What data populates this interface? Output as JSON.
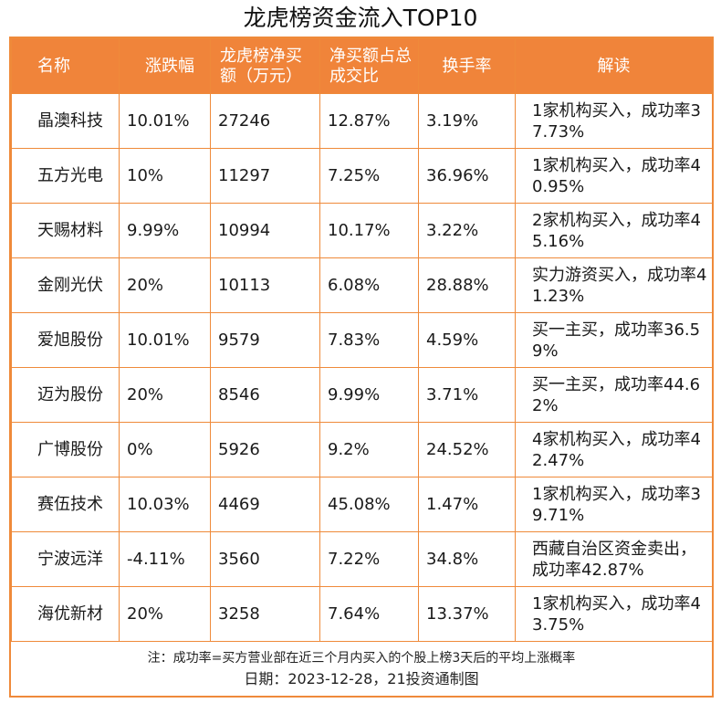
{
  "title": "龙虎榜资金流入TOP10",
  "headers": {
    "name": "名称",
    "change": "涨跌幅",
    "net_buy": "龙虎榜净买额（万元）",
    "net_ratio": "净买额占总成交比",
    "turnover": "换手率",
    "reading": "解读"
  },
  "rows": [
    {
      "name": "晶澳科技",
      "change": "10.01%",
      "net_buy": "27246",
      "net_ratio": "12.87%",
      "turnover": "3.19%",
      "reading": "1家机构买入，成功率37.73%"
    },
    {
      "name": "五方光电",
      "change": "10%",
      "net_buy": "11297",
      "net_ratio": "7.25%",
      "turnover": "36.96%",
      "reading": "1家机构买入，成功率40.95%"
    },
    {
      "name": "天赐材料",
      "change": "9.99%",
      "net_buy": "10994",
      "net_ratio": "10.17%",
      "turnover": "3.22%",
      "reading": "2家机构买入，成功率45.16%"
    },
    {
      "name": "金刚光伏",
      "change": "20%",
      "net_buy": "10113",
      "net_ratio": "6.08%",
      "turnover": "28.88%",
      "reading": "实力游资买入，成功率41.23%"
    },
    {
      "name": "爱旭股份",
      "change": "10.01%",
      "net_buy": "9579",
      "net_ratio": "7.83%",
      "turnover": "4.59%",
      "reading": "买一主买，成功率36.59%"
    },
    {
      "name": "迈为股份",
      "change": "20%",
      "net_buy": "8546",
      "net_ratio": "9.99%",
      "turnover": "3.71%",
      "reading": "买一主买，成功率44.62%"
    },
    {
      "name": "广博股份",
      "change": "0%",
      "net_buy": "5926",
      "net_ratio": "9.2%",
      "turnover": "24.52%",
      "reading": "4家机构买入，成功率42.47%"
    },
    {
      "name": "赛伍技术",
      "change": "10.03%",
      "net_buy": "4469",
      "net_ratio": "45.08%",
      "turnover": "1.47%",
      "reading": "1家机构买入，成功率39.71%"
    },
    {
      "name": "宁波远洋",
      "change": "-4.11%",
      "net_buy": "3560",
      "net_ratio": "7.22%",
      "turnover": "34.8%",
      "reading": "西藏自治区资金卖出，成功率42.87%"
    },
    {
      "name": "海优新材",
      "change": "20%",
      "net_buy": "3258",
      "net_ratio": "7.64%",
      "turnover": "13.37%",
      "reading": "1家机构买入，成功率43.75%"
    }
  ],
  "footer": {
    "note": "注：成功率=买方营业部在近三个月内买入的个股上榜3天后的平均上涨概率",
    "date": "日期：2023-12-28，21投资通制图"
  },
  "colors": {
    "header_bg": "#f0843a",
    "border": "#ef8a3a"
  }
}
